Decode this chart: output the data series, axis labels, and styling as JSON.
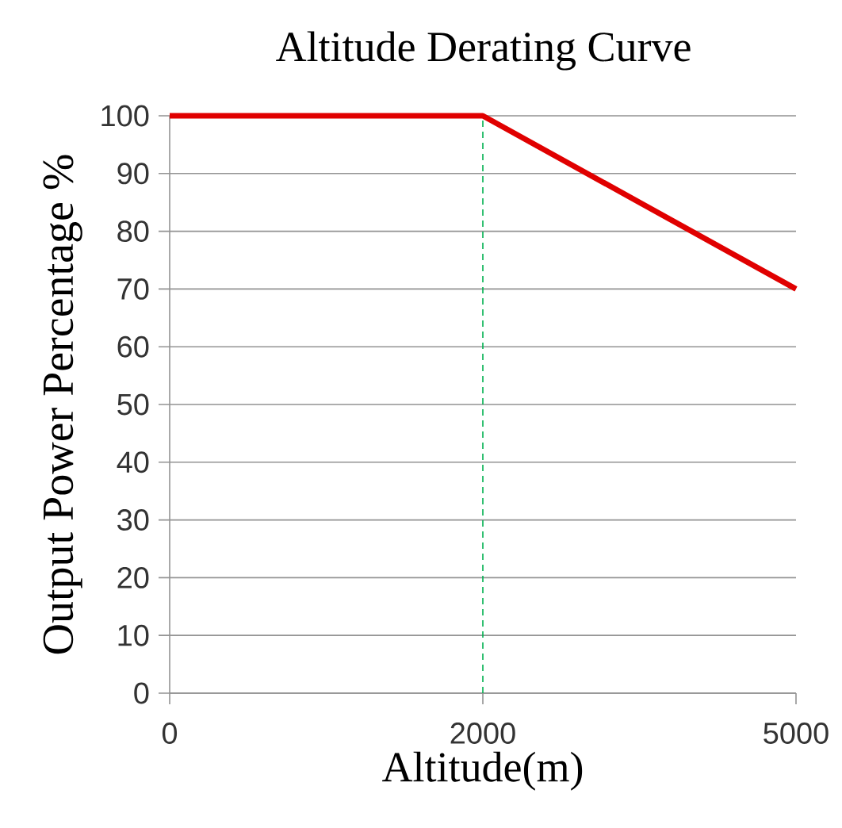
{
  "chart_data": {
    "type": "line",
    "title": "Altitude Derating Curve",
    "xlabel": "Altitude(m)",
    "ylabel": "Output Power Percentage %",
    "categories": [
      "0",
      "2000",
      "5000"
    ],
    "series": [
      {
        "color": "#e00000",
        "values": [
          100,
          100,
          70
        ]
      }
    ],
    "ylim": [
      0,
      100
    ],
    "yticks": [
      0,
      10,
      20,
      30,
      40,
      50,
      60,
      70,
      80,
      90,
      100
    ],
    "grid": "y",
    "marker": "none",
    "line_style": "solid",
    "ref_lines": [
      {
        "axis": "x",
        "value": "2000",
        "color": "#00b050",
        "line_style": "dashed"
      }
    ]
  }
}
